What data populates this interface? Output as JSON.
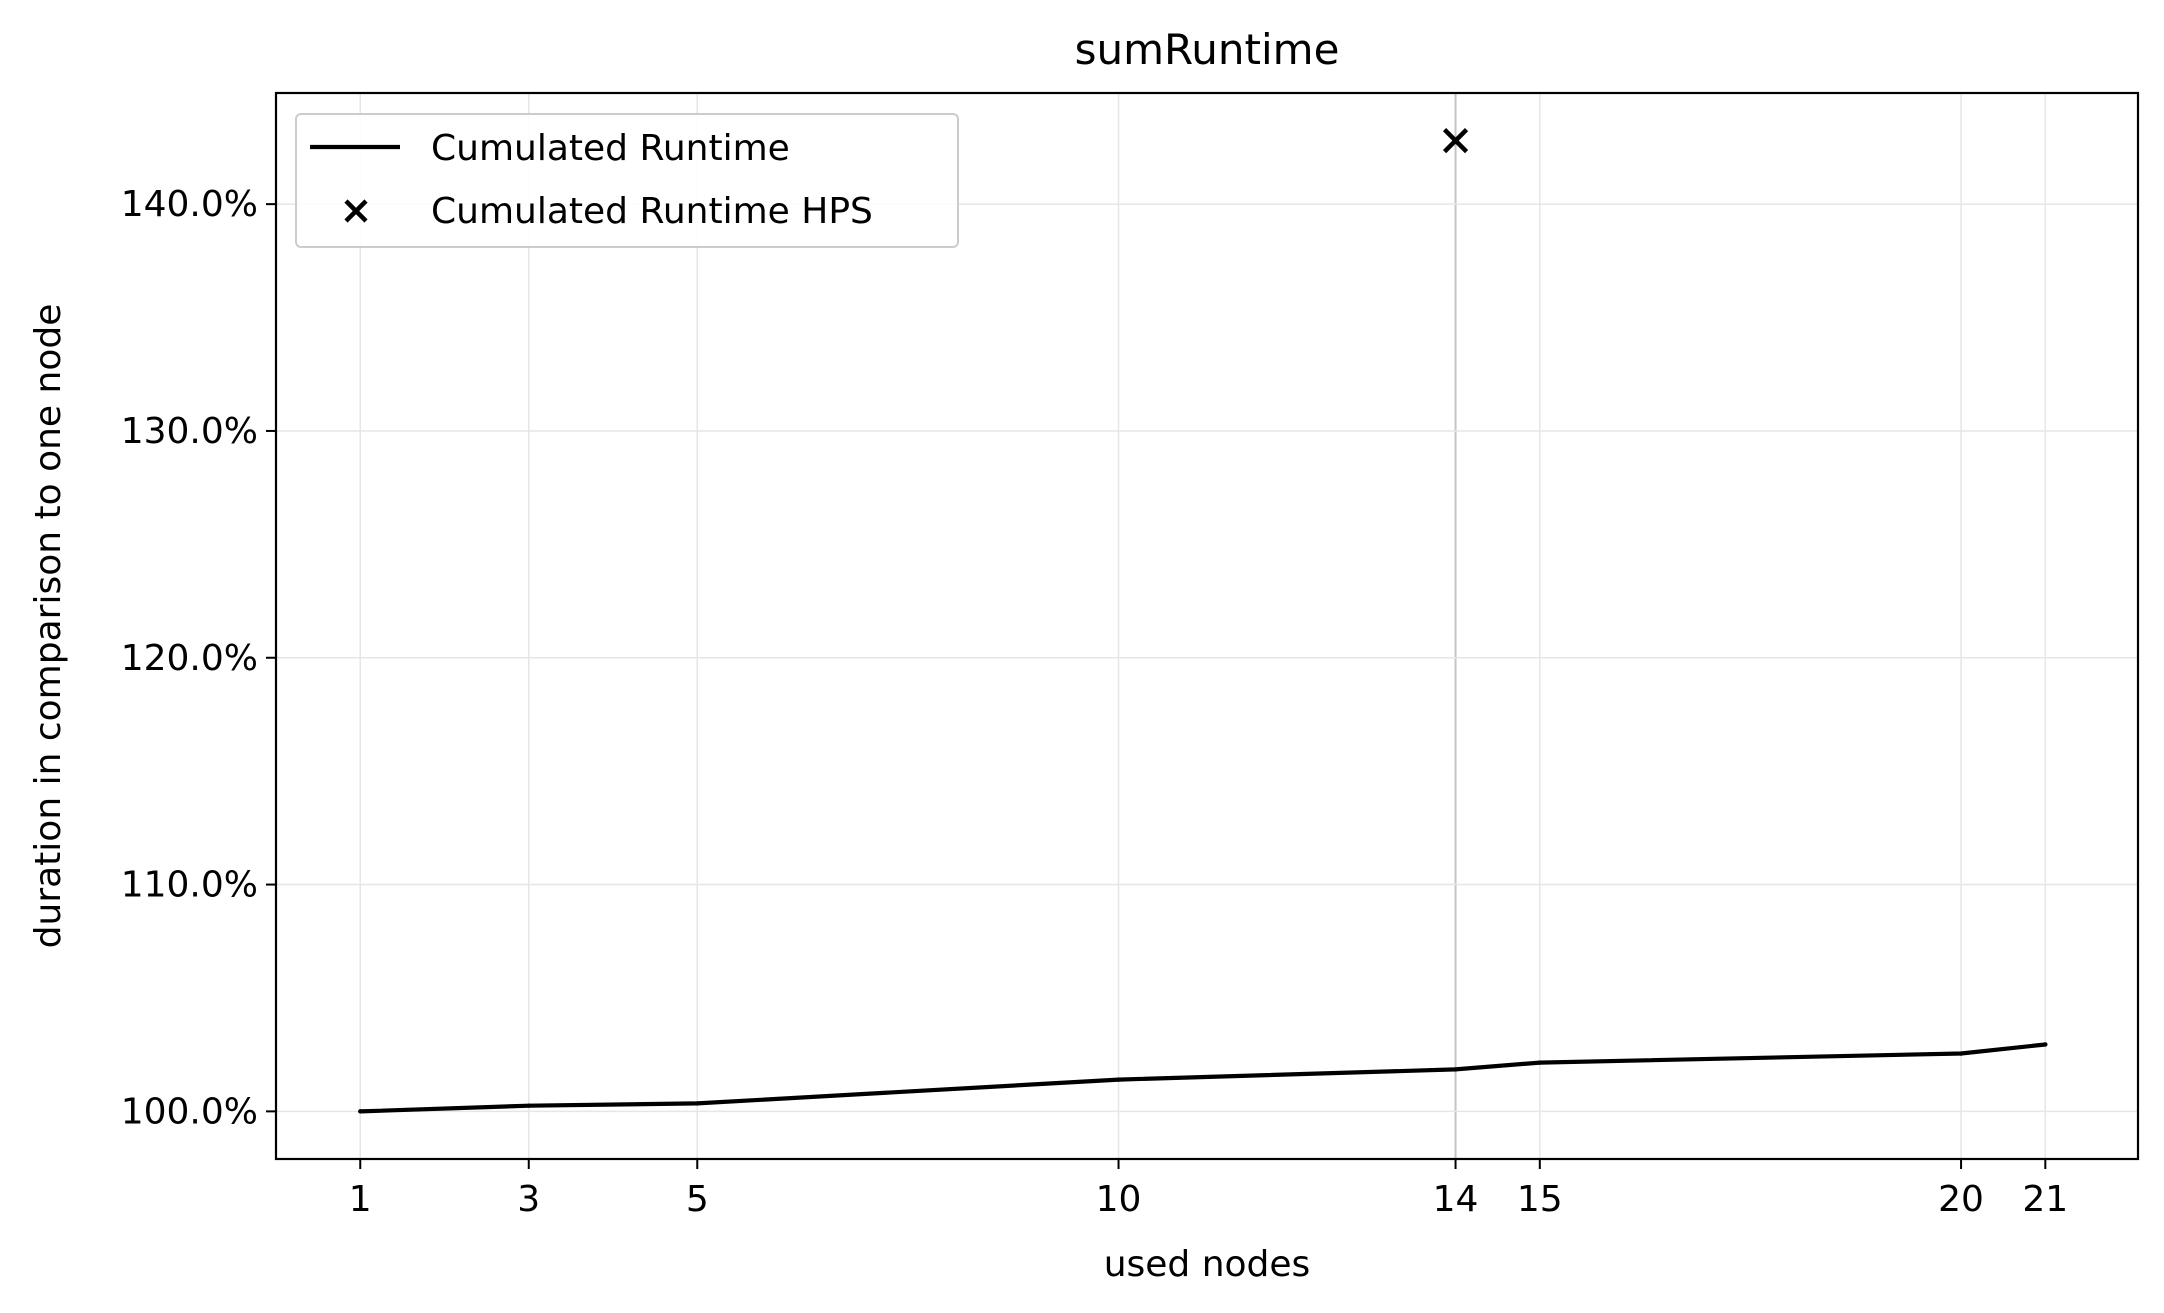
{
  "chart_data": {
    "type": "line",
    "title": "sumRuntime",
    "xlabel": "used nodes",
    "ylabel": "duration in comparison to one node",
    "xlim": [
      0,
      22.1
    ],
    "ylim": [
      97.9,
      144.9
    ],
    "xticks": [
      1,
      3,
      5,
      10,
      14,
      15,
      20,
      21
    ],
    "xtick_labels": [
      "1",
      "3",
      "5",
      "10",
      "14",
      "15",
      "20",
      "21"
    ],
    "yticks": [
      100,
      110,
      120,
      130,
      140
    ],
    "ytick_labels": [
      "100.0%",
      "110.0%",
      "120.0%",
      "130.0%",
      "140.0%"
    ],
    "grid": true,
    "highlight_x": 14,
    "legend_position": "upper-left",
    "series": [
      {
        "name": "Cumulated Runtime",
        "kind": "line",
        "color": "#000000",
        "x": [
          1,
          3,
          5,
          10,
          14,
          15,
          20,
          21
        ],
        "y": [
          100.0,
          100.25,
          100.35,
          101.4,
          101.85,
          102.15,
          102.55,
          102.95
        ]
      },
      {
        "name": "Cumulated Runtime HPS",
        "kind": "scatter",
        "marker": "x",
        "color": "#000000",
        "x": [
          14
        ],
        "y": [
          142.8
        ]
      }
    ]
  }
}
